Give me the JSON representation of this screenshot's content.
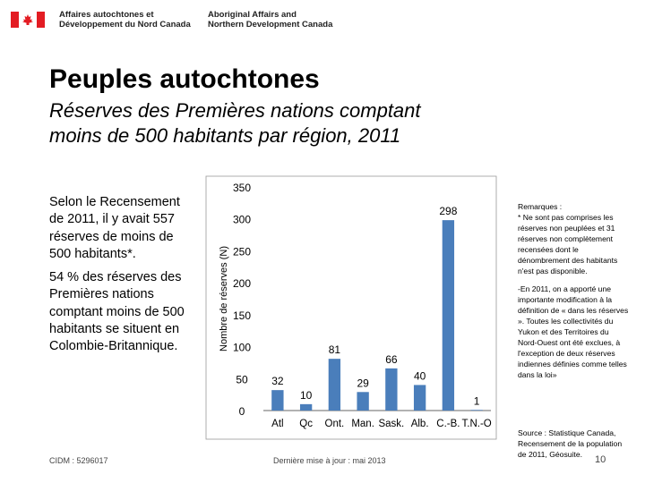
{
  "header": {
    "fr_line1": "Affaires autochtones et",
    "fr_line2": "Développement du Nord Canada",
    "en_line1": "Aboriginal Affairs and",
    "en_line2": "Northern Development Canada",
    "flag_icon": "canada-flag-icon",
    "flag_red": "#e31c23"
  },
  "title": "Peuples autochtones",
  "subtitle_line1": "Réserves des Premières nations comptant",
  "subtitle_line2": "moins de 500 habitants par région, 2011",
  "left_text": {
    "p1": "Selon le Recensement de 2011, il y avait 557 réserves de moins de 500 habitants*.",
    "p2": "54 % des réserves des Premières nations comptant moins de 500 habitants se situent en Colombie-Britannique."
  },
  "notes": {
    "title": "Remarques :",
    "n1": "* Ne sont pas comprises les réserves non peuplées et 31 réserves non complètement recensées dont le dénombrement des habitants n'est pas disponible.",
    "n2": "-En 2011, on a apporté une importante modification à la définition de « dans les réserves ». Toutes les collectivités du Yukon et des Territoires du Nord-Ouest ont été exclues, à l'exception de deux réserves indiennes définies comme telles dans la loi»"
  },
  "source": "Source : Statistique Canada, Recensement de la population de 2011, Géosuite.",
  "footer": {
    "id": "CIDM : 5296017",
    "date": "Dernière mise à jour : mai 2013",
    "page": "10"
  },
  "chart_data": {
    "type": "bar",
    "categories": [
      "Atl",
      "Qc",
      "Ont.",
      "Man.",
      "Sask.",
      "Alb.",
      "C.-B.",
      "T.N.-O"
    ],
    "values": [
      32,
      10,
      81,
      29,
      66,
      40,
      298,
      1
    ],
    "ylabel": "Nombre de réserves (N)",
    "ylim": [
      0,
      350
    ],
    "yticks": [
      0,
      50,
      100,
      150,
      200,
      250,
      300,
      350
    ],
    "bar_color": "#4a7ebb",
    "grid": false
  }
}
